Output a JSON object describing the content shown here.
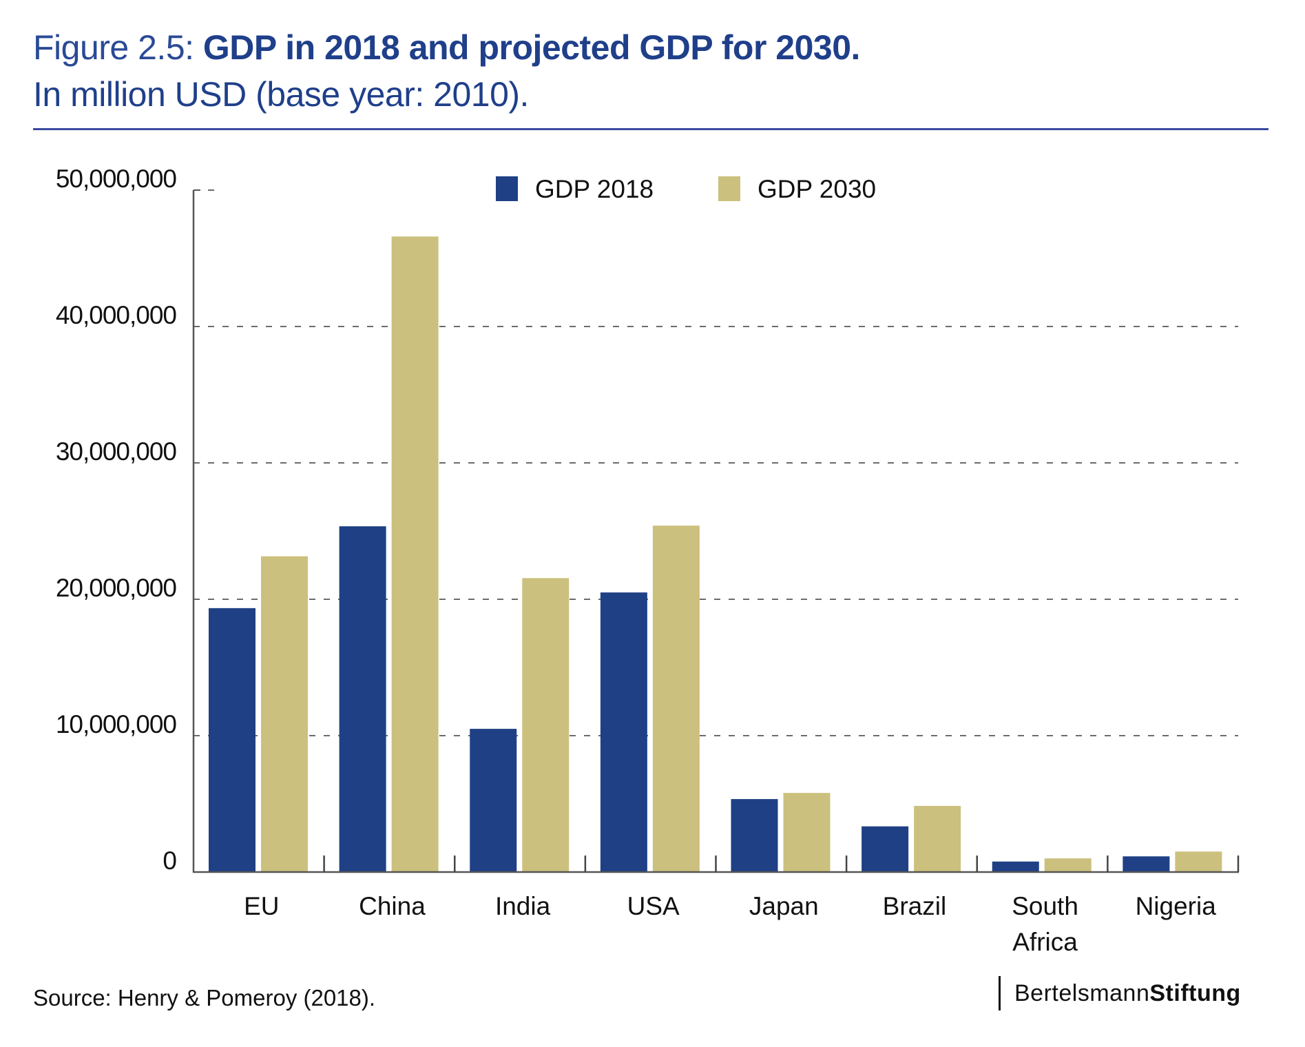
{
  "header": {
    "figure_label": "Figure 2.5: ",
    "title_bold": "GDP in 2018 and projected GDP for 2030.",
    "subtitle": "In million USD (base year: 2010)."
  },
  "footer": {
    "source": "Source: Henry & Pomeroy (2018).",
    "logo_regular": "Bertelsmann",
    "logo_bold": "Stiftung"
  },
  "colors": {
    "gdp2018": "#1f4085",
    "gdp2030": "#cbc07d",
    "title": "#1f3f8a",
    "rule": "#3a4aa0"
  },
  "chart_data": {
    "type": "bar",
    "title": "GDP in 2018 and projected GDP for 2030. In million USD (base year: 2010).",
    "xlabel": "",
    "ylabel": "",
    "ylim": [
      0,
      50000000
    ],
    "yticks": [
      0,
      10000000,
      20000000,
      30000000,
      40000000,
      50000000
    ],
    "ytick_labels": [
      "0",
      "10,000,000",
      "20,000,000",
      "30,000,000",
      "40,000,000",
      "50,000,000"
    ],
    "grid": true,
    "legend_position": "top-center",
    "categories": [
      "EU",
      "China",
      "India",
      "USA",
      "Japan",
      "Brazil",
      "South Africa",
      "Nigeria"
    ],
    "category_lines": [
      [
        "EU"
      ],
      [
        "China"
      ],
      [
        "India"
      ],
      [
        "USA"
      ],
      [
        "Japan"
      ],
      [
        "Brazil"
      ],
      [
        "South",
        "Africa"
      ],
      [
        "Nigeria"
      ]
    ],
    "series": [
      {
        "name": "GDP 2018",
        "color": "#1f4085",
        "values": [
          19350000,
          25350000,
          10500000,
          20500000,
          5350000,
          3350000,
          770000,
          1150000
        ]
      },
      {
        "name": "GDP 2030",
        "color": "#cbc07d",
        "values": [
          23150000,
          46600000,
          21550000,
          25400000,
          5800000,
          4850000,
          1000000,
          1500000
        ]
      }
    ]
  }
}
